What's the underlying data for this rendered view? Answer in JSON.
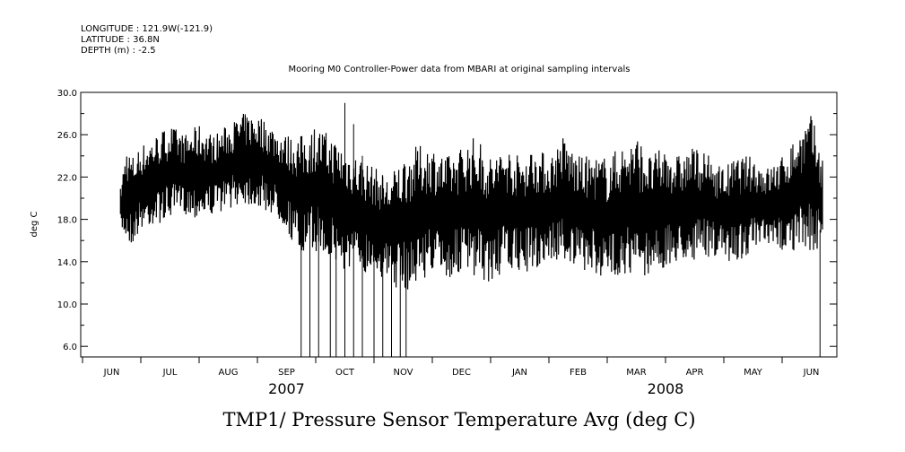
{
  "header": {
    "longitude": "LONGITUDE : 121.9W(-121.9)",
    "latitude": "LATITUDE : 36.8N",
    "depth": "DEPTH (m) : -2.5"
  },
  "chart_data": {
    "type": "line",
    "title": "Mooring M0 Controller-Power data from MBARI at original sampling intervals",
    "variable_title": "TMP1/ Pressure Sensor Temperature Avg (deg C)",
    "ylabel": "deg C",
    "xlabel": "",
    "ylim": [
      5.0,
      30.0
    ],
    "y_ticks": [
      6.0,
      10.0,
      14.0,
      18.0,
      22.0,
      26.0,
      30.0
    ],
    "y_tick_labels": [
      "6.0",
      "10.0",
      "14.0",
      "18.0",
      "22.0",
      "26.0",
      "30.0"
    ],
    "xlim_months": [
      0,
      13
    ],
    "month_labels": [
      "JUN",
      "JUL",
      "AUG",
      "SEP",
      "OCT",
      "NOV",
      "DEC",
      "JAN",
      "FEB",
      "MAR",
      "APR",
      "MAY",
      "JUN"
    ],
    "year_labels": [
      {
        "label": "2007",
        "month_index": 3.5
      },
      {
        "label": "2008",
        "month_index": 10
      }
    ],
    "grid": false,
    "series": [
      {
        "name": "TMP1",
        "color": "#000000",
        "x_months": [
          0.65,
          0.75,
          0.85,
          1.0,
          1.25,
          1.5,
          1.75,
          2.0,
          2.25,
          2.5,
          2.75,
          3.0,
          3.25,
          3.5,
          3.75,
          4.0,
          4.25,
          4.5,
          4.75,
          5.0,
          5.25,
          5.5,
          5.75,
          6.0,
          6.25,
          6.5,
          6.75,
          7.0,
          7.25,
          7.5,
          7.75,
          8.0,
          8.25,
          8.5,
          8.75,
          9.0,
          9.25,
          9.5,
          9.75,
          10.0,
          10.25,
          10.5,
          10.75,
          11.0,
          11.25,
          11.5,
          11.75,
          12.0,
          12.25,
          12.5,
          12.7
        ],
        "y_min": [
          17.0,
          16.0,
          15.5,
          17.0,
          17.5,
          18.0,
          18.5,
          18.0,
          18.5,
          19.0,
          19.5,
          19.0,
          18.5,
          17.0,
          14.0,
          15.0,
          14.0,
          13.0,
          13.0,
          13.0,
          12.0,
          11.0,
          12.0,
          13.0,
          12.0,
          13.0,
          12.0,
          12.0,
          13.0,
          13.0,
          13.0,
          14.0,
          14.0,
          13.0,
          13.0,
          12.0,
          13.0,
          12.0,
          13.0,
          13.0,
          14.0,
          14.0,
          14.5,
          14.0,
          14.0,
          15.0,
          15.0,
          15.0,
          15.0,
          15.0,
          15.0
        ],
        "y_max": [
          21.0,
          25.0,
          24.0,
          25.0,
          26.0,
          27.0,
          26.0,
          27.0,
          26.0,
          27.0,
          28.0,
          28.0,
          27.0,
          26.0,
          26.0,
          27.0,
          26.0,
          25.0,
          24.0,
          23.0,
          22.0,
          24.0,
          25.0,
          25.0,
          24.0,
          25.0,
          26.0,
          24.0,
          25.0,
          24.0,
          25.0,
          24.0,
          26.0,
          24.0,
          24.0,
          24.0,
          25.0,
          26.0,
          24.0,
          25.0,
          24.0,
          25.0,
          24.0,
          23.0,
          24.0,
          24.0,
          23.0,
          24.0,
          26.0,
          28.0,
          24.0
        ],
        "spikes": [
          {
            "x_month": 3.75,
            "low": 5.0,
            "high": 19.0
          },
          {
            "x_month": 3.9,
            "low": 5.0,
            "high": 20.0
          },
          {
            "x_month": 4.05,
            "low": 5.0,
            "high": 21.0
          },
          {
            "x_month": 4.25,
            "low": 5.0,
            "high": 22.0
          },
          {
            "x_month": 4.35,
            "low": 5.0,
            "high": 23.0
          },
          {
            "x_month": 4.5,
            "low": 5.0,
            "high": 29.0
          },
          {
            "x_month": 4.65,
            "low": 5.0,
            "high": 27.0
          },
          {
            "x_month": 4.8,
            "low": 5.0,
            "high": 24.0
          },
          {
            "x_month": 5.0,
            "low": 5.0,
            "high": 21.0
          },
          {
            "x_month": 5.15,
            "low": 5.0,
            "high": 22.0
          },
          {
            "x_month": 5.3,
            "low": 5.0,
            "high": 19.0
          },
          {
            "x_month": 5.45,
            "low": 5.0,
            "high": 18.0
          },
          {
            "x_month": 5.55,
            "low": 5.0,
            "high": 20.0
          },
          {
            "x_month": 12.65,
            "low": 5.0,
            "high": 17.0
          }
        ]
      }
    ]
  }
}
